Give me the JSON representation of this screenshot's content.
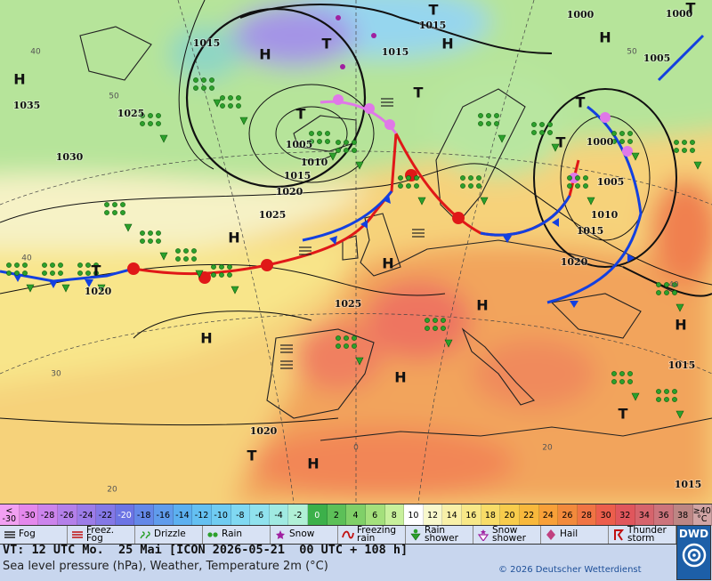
{
  "map": {
    "isobar_labels": [
      "1015",
      "1035",
      "1025",
      "1030",
      "1005",
      "1010",
      "1015",
      "1020",
      "1025",
      "1020",
      "1025",
      "1015",
      "1015",
      "1000",
      "1000",
      "1005",
      "1000",
      "1005",
      "1010",
      "1015",
      "1020",
      "1015",
      "1020",
      "1015"
    ],
    "centers": [
      "H",
      "H",
      "T",
      "H",
      "T",
      "T",
      "T",
      "H",
      "T",
      "T",
      "H",
      "H",
      "H",
      "H",
      "H",
      "H",
      "T",
      "T",
      "H",
      "T",
      "T"
    ],
    "temperature_labels": [
      "40",
      "50",
      "40",
      "30",
      "20",
      "0",
      "20",
      "50",
      "40"
    ]
  },
  "scale": {
    "cells": [
      {
        "label": "<\n-30",
        "color": "#f2a0f2"
      },
      {
        "label": "-30",
        "color": "#e488ec"
      },
      {
        "label": "-28",
        "color": "#cc84ec"
      },
      {
        "label": "-26",
        "color": "#b480ea"
      },
      {
        "label": "-24",
        "color": "#9c7ce8"
      },
      {
        "label": "-22",
        "color": "#8478e6"
      },
      {
        "label": "-20",
        "color": "#6c74e4"
      },
      {
        "label": "-18",
        "color": "#6488e8"
      },
      {
        "label": "-16",
        "color": "#609cec"
      },
      {
        "label": "-14",
        "color": "#5cb0f0"
      },
      {
        "label": "-12",
        "color": "#64c0f2"
      },
      {
        "label": "-10",
        "color": "#70ccf2"
      },
      {
        "label": "-8",
        "color": "#80d8f2"
      },
      {
        "label": "-6",
        "color": "#90e2ee"
      },
      {
        "label": "-4",
        "color": "#a0eae2"
      },
      {
        "label": "-2",
        "color": "#b0f0d6"
      },
      {
        "label": "0",
        "color": "#3cb04a"
      },
      {
        "label": "2",
        "color": "#5cc058"
      },
      {
        "label": "4",
        "color": "#80d068"
      },
      {
        "label": "6",
        "color": "#a4e07c"
      },
      {
        "label": "8",
        "color": "#c8f09c"
      },
      {
        "label": "10",
        "color": "#ffffff"
      },
      {
        "label": "12",
        "color": "#f8f8cc"
      },
      {
        "label": "14",
        "color": "#f8f0a8"
      },
      {
        "label": "16",
        "color": "#f8e888"
      },
      {
        "label": "18",
        "color": "#f8dc68"
      },
      {
        "label": "20",
        "color": "#f8cc4c"
      },
      {
        "label": "22",
        "color": "#f8b83c"
      },
      {
        "label": "24",
        "color": "#f8a038"
      },
      {
        "label": "26",
        "color": "#f28a3c"
      },
      {
        "label": "28",
        "color": "#f07444"
      },
      {
        "label": "30",
        "color": "#ec5e4c"
      },
      {
        "label": "32",
        "color": "#e0565c"
      },
      {
        "label": "34",
        "color": "#d6646c"
      },
      {
        "label": "36",
        "color": "#cc747c"
      },
      {
        "label": "38",
        "color": "#bc8684"
      },
      {
        "label": "≥40\n°C",
        "color": "#d0a4a4"
      }
    ]
  },
  "weather_legend": [
    "Fog",
    "Freez.\nFog",
    "Drizzle",
    "Rain",
    "Snow",
    "Freezing\nrain",
    "Rain\nshower",
    "Snow\nshower",
    "Hail",
    "Thunder\nstorm"
  ],
  "logo": "DWD",
  "footer": {
    "valid_time": "VT: 12 UTC Mo.  25 Mai [ICON 2026-05-21  00 UTC + 108 h]",
    "description": "Sea level pressure (hPa), Weather, Temperature 2m (°C)",
    "copyright": "© 2026 Deutscher Wetterdienst"
  }
}
